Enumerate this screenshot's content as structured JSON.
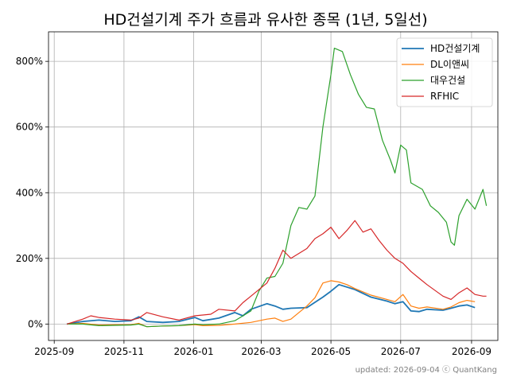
{
  "chart_data": {
    "type": "line",
    "title": "HD건설기계 주가 흐름과 유사한 종목 (1년, 5일선)",
    "xlabel": "",
    "ylabel": "",
    "x_ticks": [
      "2025-09",
      "2025-11",
      "2026-01",
      "2026-03",
      "2026-05",
      "2026-07",
      "2026-09"
    ],
    "y_ticks": [
      0,
      200,
      400,
      600,
      800
    ],
    "y_tick_labels": [
      "0%",
      "200%",
      "400%",
      "600%",
      "800%"
    ],
    "xlim": [
      "2025-08-27",
      "2026-09-24"
    ],
    "ylim": [
      -50,
      890
    ],
    "grid": true,
    "legend_position": "top-right",
    "footer": "updated: 2026-09-04 ⓒ QuantKang",
    "series": [
      {
        "name": "HD건설기계",
        "color": "#1f77b4",
        "points": [
          [
            "2025-09-12",
            0
          ],
          [
            "2025-09-26",
            8
          ],
          [
            "2025-10-10",
            12
          ],
          [
            "2025-10-24",
            8
          ],
          [
            "2025-11-07",
            10
          ],
          [
            "2025-11-14",
            22
          ],
          [
            "2025-11-21",
            8
          ],
          [
            "2025-12-05",
            5
          ],
          [
            "2025-12-19",
            8
          ],
          [
            "2026-01-02",
            20
          ],
          [
            "2026-01-09",
            10
          ],
          [
            "2026-01-23",
            18
          ],
          [
            "2026-02-06",
            35
          ],
          [
            "2026-02-13",
            25
          ],
          [
            "2026-02-20",
            45
          ],
          [
            "2026-03-06",
            62
          ],
          [
            "2026-03-13",
            55
          ],
          [
            "2026-03-20",
            45
          ],
          [
            "2026-03-27",
            48
          ],
          [
            "2026-04-10",
            50
          ],
          [
            "2026-04-24",
            82
          ],
          [
            "2026-05-01",
            100
          ],
          [
            "2026-05-08",
            120
          ],
          [
            "2026-05-22",
            105
          ],
          [
            "2026-06-05",
            82
          ],
          [
            "2026-06-19",
            70
          ],
          [
            "2026-06-26",
            62
          ],
          [
            "2026-07-03",
            68
          ],
          [
            "2026-07-10",
            40
          ],
          [
            "2026-07-17",
            38
          ],
          [
            "2026-07-24",
            45
          ],
          [
            "2026-08-07",
            42
          ],
          [
            "2026-08-14",
            48
          ],
          [
            "2026-08-21",
            55
          ],
          [
            "2026-08-28",
            58
          ],
          [
            "2026-09-04",
            50
          ]
        ]
      },
      {
        "name": "DL이앤씨",
        "color": "#ff7f0e",
        "points": [
          [
            "2025-09-12",
            0
          ],
          [
            "2025-09-26",
            2
          ],
          [
            "2025-10-10",
            -3
          ],
          [
            "2025-10-24",
            -2
          ],
          [
            "2025-11-07",
            -2
          ],
          [
            "2025-11-14",
            2
          ],
          [
            "2025-11-21",
            -8
          ],
          [
            "2025-12-05",
            -6
          ],
          [
            "2025-12-19",
            -5
          ],
          [
            "2026-01-02",
            -2
          ],
          [
            "2026-01-09",
            -5
          ],
          [
            "2026-01-23",
            -4
          ],
          [
            "2026-02-06",
            0
          ],
          [
            "2026-02-20",
            5
          ],
          [
            "2026-03-06",
            15
          ],
          [
            "2026-03-13",
            18
          ],
          [
            "2026-03-20",
            8
          ],
          [
            "2026-03-27",
            15
          ],
          [
            "2026-04-10",
            55
          ],
          [
            "2026-04-17",
            80
          ],
          [
            "2026-04-24",
            125
          ],
          [
            "2026-05-01",
            132
          ],
          [
            "2026-05-08",
            128
          ],
          [
            "2026-05-15",
            120
          ],
          [
            "2026-05-22",
            108
          ],
          [
            "2026-06-05",
            88
          ],
          [
            "2026-06-19",
            75
          ],
          [
            "2026-06-26",
            68
          ],
          [
            "2026-07-03",
            90
          ],
          [
            "2026-07-10",
            55
          ],
          [
            "2026-07-17",
            48
          ],
          [
            "2026-07-24",
            52
          ],
          [
            "2026-08-07",
            45
          ],
          [
            "2026-08-14",
            52
          ],
          [
            "2026-08-21",
            65
          ],
          [
            "2026-08-28",
            72
          ],
          [
            "2026-09-04",
            68
          ]
        ]
      },
      {
        "name": "대우건설",
        "color": "#2ca02c",
        "points": [
          [
            "2025-09-12",
            0
          ],
          [
            "2025-09-26",
            0
          ],
          [
            "2025-10-10",
            -5
          ],
          [
            "2025-10-24",
            -4
          ],
          [
            "2025-11-07",
            -3
          ],
          [
            "2025-11-14",
            0
          ],
          [
            "2025-11-21",
            -8
          ],
          [
            "2025-12-05",
            -6
          ],
          [
            "2025-12-19",
            -5
          ],
          [
            "2026-01-02",
            0
          ],
          [
            "2026-01-09",
            -2
          ],
          [
            "2026-01-23",
            0
          ],
          [
            "2026-02-06",
            10
          ],
          [
            "2026-02-20",
            40
          ],
          [
            "2026-02-27",
            100
          ],
          [
            "2026-03-06",
            140
          ],
          [
            "2026-03-13",
            145
          ],
          [
            "2026-03-20",
            185
          ],
          [
            "2026-03-27",
            300
          ],
          [
            "2026-04-03",
            355
          ],
          [
            "2026-04-10",
            350
          ],
          [
            "2026-04-17",
            390
          ],
          [
            "2026-04-24",
            600
          ],
          [
            "2026-05-01",
            760
          ],
          [
            "2026-05-04",
            840
          ],
          [
            "2026-05-11",
            830
          ],
          [
            "2026-05-18",
            760
          ],
          [
            "2026-05-25",
            700
          ],
          [
            "2026-06-01",
            660
          ],
          [
            "2026-06-08",
            655
          ],
          [
            "2026-06-15",
            560
          ],
          [
            "2026-06-22",
            500
          ],
          [
            "2026-06-26",
            460
          ],
          [
            "2026-07-01",
            545
          ],
          [
            "2026-07-06",
            530
          ],
          [
            "2026-07-10",
            430
          ],
          [
            "2026-07-20",
            410
          ],
          [
            "2026-07-27",
            360
          ],
          [
            "2026-08-03",
            340
          ],
          [
            "2026-08-10",
            310
          ],
          [
            "2026-08-14",
            250
          ],
          [
            "2026-08-17",
            240
          ],
          [
            "2026-08-21",
            330
          ],
          [
            "2026-08-28",
            380
          ],
          [
            "2026-09-04",
            350
          ],
          [
            "2026-09-11",
            410
          ],
          [
            "2026-09-14",
            360
          ]
        ]
      },
      {
        "name": "RFHIC",
        "color": "#d62728",
        "points": [
          [
            "2025-09-12",
            0
          ],
          [
            "2025-09-26",
            15
          ],
          [
            "2025-10-03",
            25
          ],
          [
            "2025-10-10",
            20
          ],
          [
            "2025-10-24",
            15
          ],
          [
            "2025-11-07",
            12
          ],
          [
            "2025-11-14",
            18
          ],
          [
            "2025-11-21",
            35
          ],
          [
            "2025-12-05",
            22
          ],
          [
            "2025-12-19",
            12
          ],
          [
            "2026-01-02",
            25
          ],
          [
            "2026-01-16",
            30
          ],
          [
            "2026-01-23",
            45
          ],
          [
            "2026-02-06",
            40
          ],
          [
            "2026-02-13",
            65
          ],
          [
            "2026-02-20",
            85
          ],
          [
            "2026-03-06",
            125
          ],
          [
            "2026-03-13",
            170
          ],
          [
            "2026-03-20",
            225
          ],
          [
            "2026-03-27",
            200
          ],
          [
            "2026-04-03",
            215
          ],
          [
            "2026-04-10",
            230
          ],
          [
            "2026-04-17",
            260
          ],
          [
            "2026-04-24",
            275
          ],
          [
            "2026-05-01",
            295
          ],
          [
            "2026-05-08",
            260
          ],
          [
            "2026-05-15",
            285
          ],
          [
            "2026-05-22",
            315
          ],
          [
            "2026-05-29",
            280
          ],
          [
            "2026-06-05",
            290
          ],
          [
            "2026-06-12",
            255
          ],
          [
            "2026-06-19",
            225
          ],
          [
            "2026-06-26",
            200
          ],
          [
            "2026-07-03",
            185
          ],
          [
            "2026-07-10",
            160
          ],
          [
            "2026-07-17",
            140
          ],
          [
            "2026-07-24",
            120
          ],
          [
            "2026-08-07",
            85
          ],
          [
            "2026-08-14",
            75
          ],
          [
            "2026-08-21",
            95
          ],
          [
            "2026-08-28",
            110
          ],
          [
            "2026-09-04",
            90
          ],
          [
            "2026-09-11",
            85
          ],
          [
            "2026-09-14",
            85
          ]
        ]
      }
    ]
  }
}
